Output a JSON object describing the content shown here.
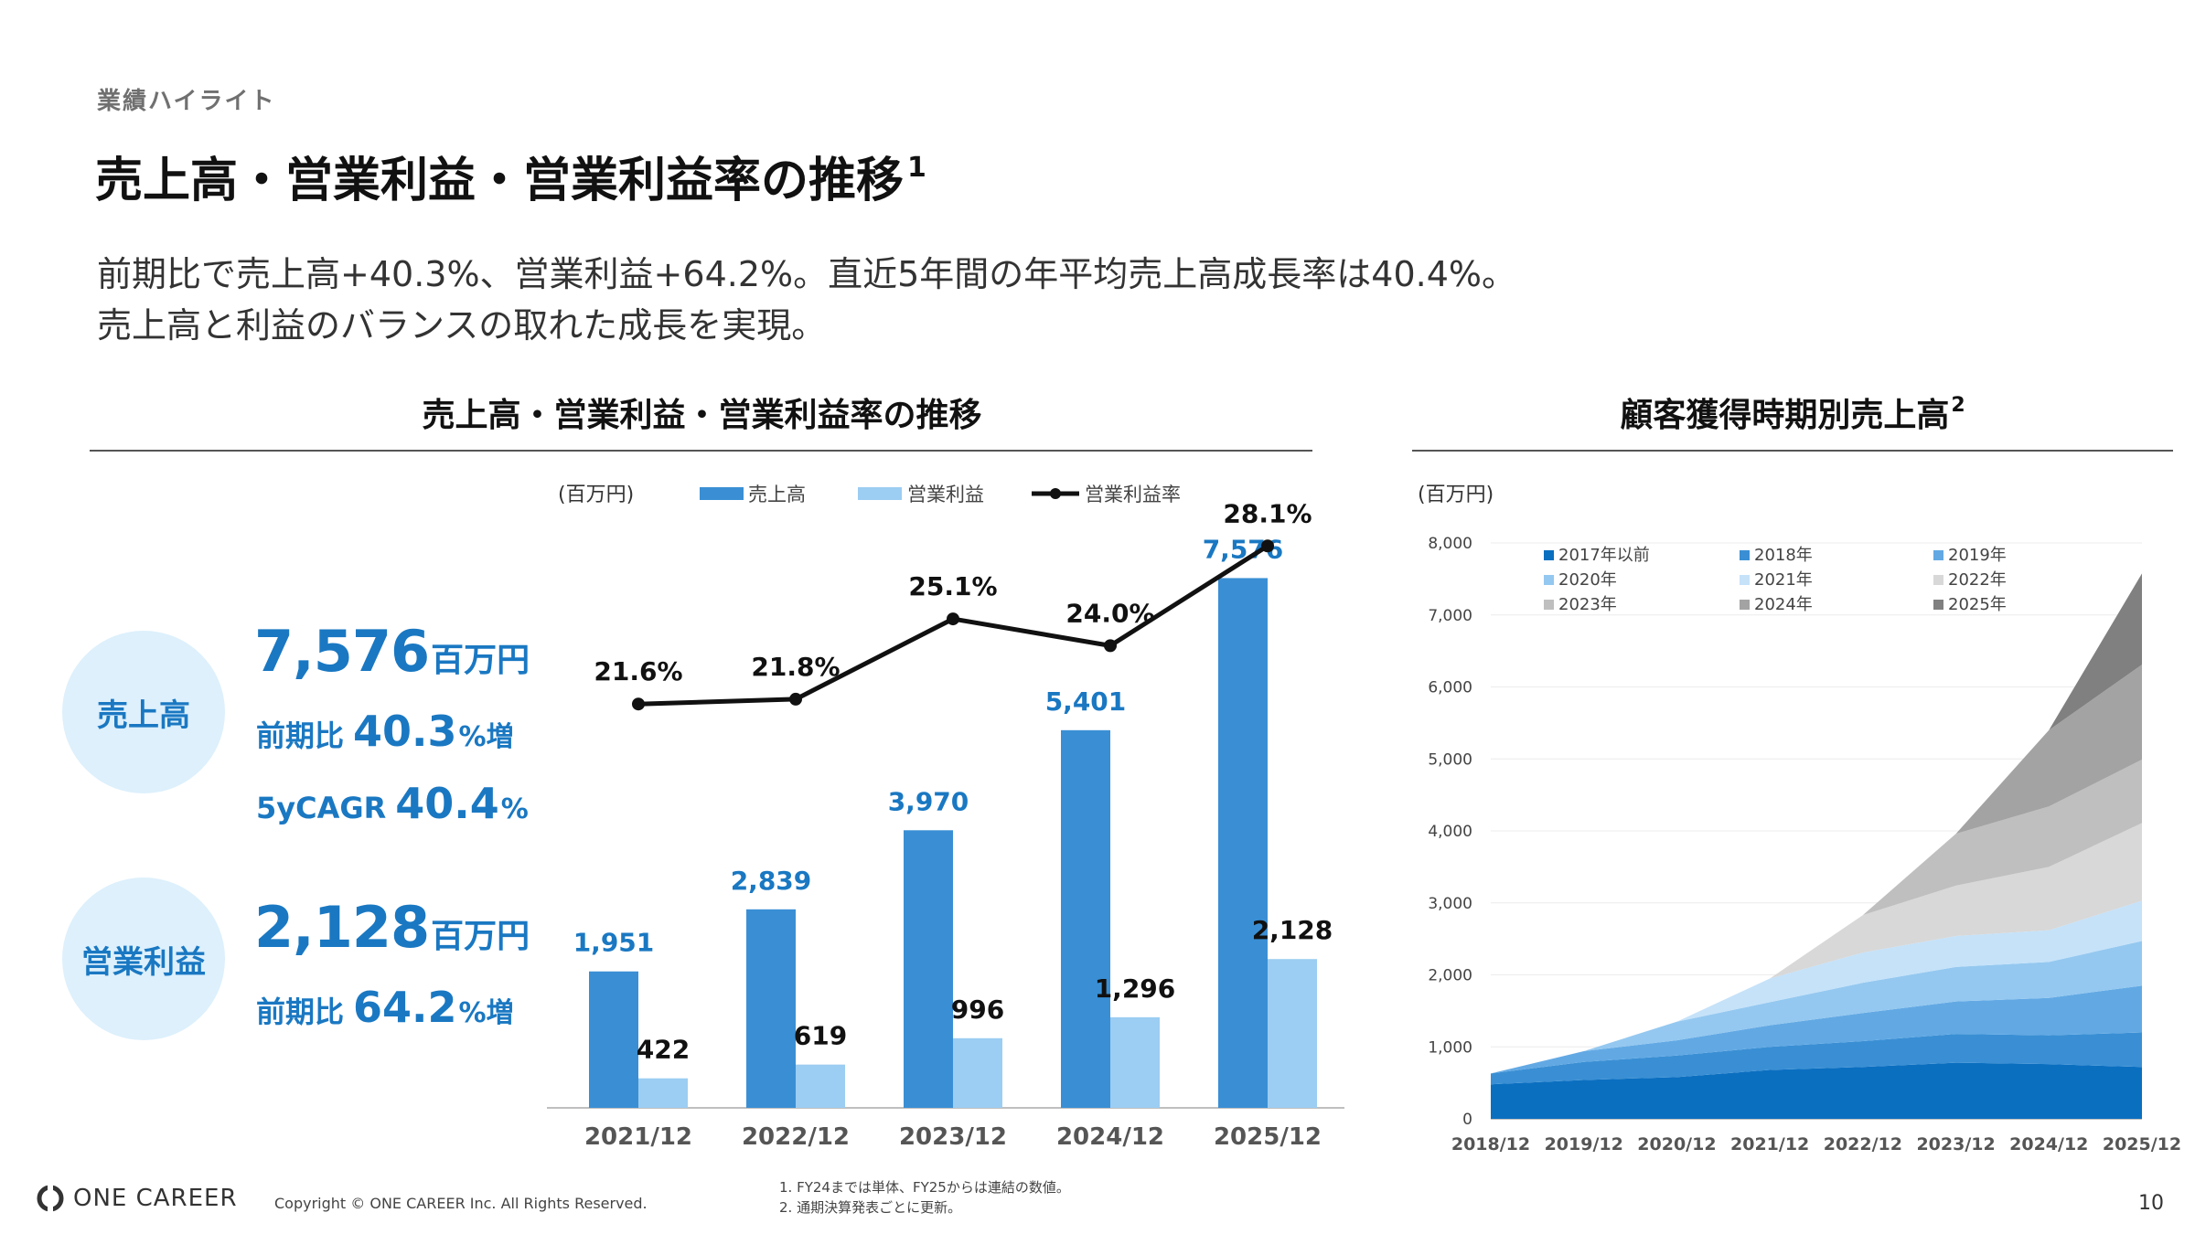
{
  "eyebrow": "業績ハイライト",
  "title": "売上高・営業利益・営業利益率の推移",
  "title_sup": "1",
  "lead": {
    "line1": "前期比で売上高+40.3%、営業利益+64.2%。直近5年間の年平均売上高成長率は40.4%。",
    "line2": "売上高と利益のバランスの取れた成長を実現。"
  },
  "left_section": {
    "title": "売上高・営業利益・営業利益率の推移"
  },
  "right_section": {
    "title": "顧客獲得時期別売上高",
    "sup": "2"
  },
  "kpi": {
    "sales": {
      "label": "売上高",
      "value": "7,576",
      "unit": "百万円",
      "yoy_label": "前期比",
      "yoy_value": "40.3",
      "yoy_suffix": "%増",
      "cagr_label": "5yCAGR",
      "cagr_value": "40.4",
      "cagr_suffix": "%"
    },
    "op": {
      "label": "営業利益",
      "value": "2,128",
      "unit": "百万円",
      "yoy_label": "前期比",
      "yoy_value": "64.2",
      "yoy_suffix": "%増"
    }
  },
  "colors": {
    "sales": "#3a8fd4",
    "op": "#9ccdf2",
    "line": "#111111",
    "accent": "#1a78c2",
    "circle": "#ddf0fc",
    "stack": [
      "#0b6fc0",
      "#3a8fd4",
      "#62a9e4",
      "#94c8f0",
      "#c5e2f9",
      "#d8d8d8",
      "#bfbfbf",
      "#a3a3a3",
      "#808080"
    ]
  },
  "chart_data": [
    {
      "type": "bar",
      "title": "売上高・営業利益・営業利益率の推移",
      "unit_label": "(百万円)",
      "categories": [
        "2021/12",
        "2022/12",
        "2023/12",
        "2024/12",
        "2025/12"
      ],
      "series": [
        {
          "name": "売上高",
          "kind": "bar",
          "values": [
            1951,
            2839,
            3970,
            5401,
            7576
          ],
          "labels": [
            "1,951",
            "2,839",
            "3,970",
            "5,401",
            "7,576"
          ]
        },
        {
          "name": "営業利益",
          "kind": "bar",
          "values": [
            422,
            619,
            996,
            1296,
            2128
          ],
          "labels": [
            "422",
            "619",
            "996",
            "1,296",
            "2,128"
          ]
        },
        {
          "name": "営業利益率",
          "kind": "line",
          "values": [
            21.6,
            21.8,
            25.1,
            24.0,
            28.1
          ],
          "labels": [
            "21.6%",
            "21.8%",
            "25.1%",
            "24.0%",
            "28.1%"
          ]
        }
      ],
      "ylim": [
        0,
        8000
      ],
      "line_ylim": [
        5,
        29.5
      ],
      "legend": "top"
    },
    {
      "type": "area",
      "title": "顧客獲得時期別売上高",
      "unit_label": "(百万円)",
      "x": [
        "2018/12",
        "2019/12",
        "2020/12",
        "2021/12",
        "2022/12",
        "2023/12",
        "2024/12",
        "2025/12"
      ],
      "yticks": [
        "0",
        "1,000",
        "2,000",
        "3,000",
        "4,000",
        "5,000",
        "6,000",
        "7,000",
        "8,000"
      ],
      "ylim": [
        0,
        8000
      ],
      "stacked": true,
      "series": [
        {
          "name": "2017年以前",
          "values": [
            480,
            540,
            580,
            680,
            720,
            780,
            760,
            720
          ]
        },
        {
          "name": "2018年",
          "values": [
            150,
            250,
            300,
            320,
            360,
            400,
            400,
            480
          ]
        },
        {
          "name": "2019年",
          "values": [
            0,
            150,
            210,
            300,
            390,
            450,
            520,
            650
          ]
        },
        {
          "name": "2020年",
          "values": [
            0,
            0,
            260,
            320,
            420,
            480,
            500,
            620
          ]
        },
        {
          "name": "2021年",
          "values": [
            0,
            0,
            0,
            330,
            420,
            430,
            440,
            560
          ]
        },
        {
          "name": "2022年",
          "values": [
            0,
            0,
            0,
            0,
            520,
            700,
            880,
            1080
          ]
        },
        {
          "name": "2023年",
          "values": [
            0,
            0,
            0,
            0,
            0,
            720,
            840,
            880
          ]
        },
        {
          "name": "2024年",
          "values": [
            0,
            0,
            0,
            0,
            0,
            0,
            1060,
            1320
          ]
        },
        {
          "name": "2025年",
          "values": [
            0,
            0,
            0,
            0,
            0,
            0,
            0,
            1266
          ]
        }
      ],
      "legend": "top-left"
    }
  ],
  "footer": {
    "logo_text": "ONE CAREER",
    "copyright": "Copyright © ONE CAREER Inc. All Rights Reserved.",
    "note1": "1. FY24までは単体、FY25からは連結の数値。",
    "note2": "2. 通期決算発表ごとに更新。",
    "page": "10"
  }
}
